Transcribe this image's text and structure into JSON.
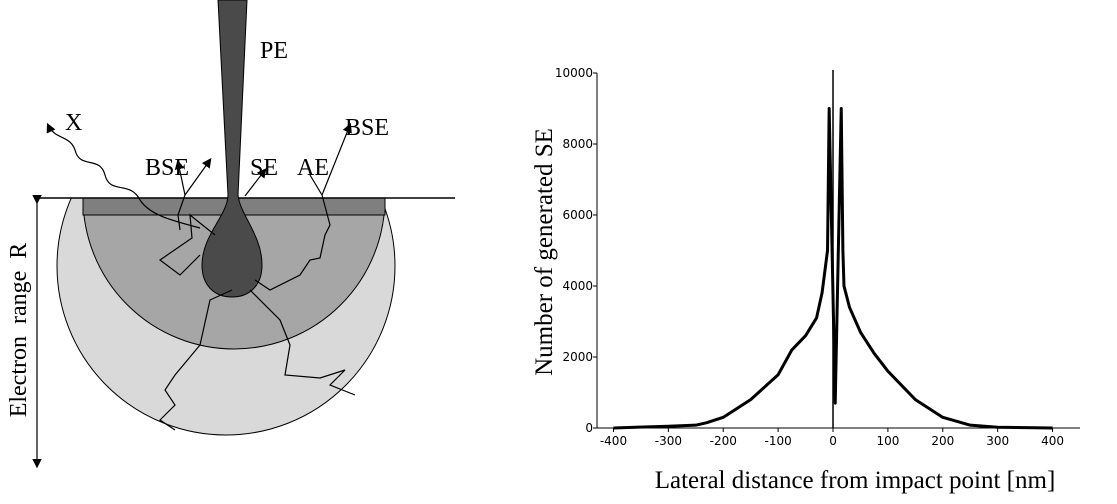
{
  "diagram": {
    "labels": [
      "PE",
      "X",
      "BSE",
      "SE",
      "AE",
      "BSE",
      "Electron  range  R"
    ]
  },
  "chart_data": {
    "type": "line",
    "x": [
      -400,
      -300,
      -250,
      -230,
      -200,
      -150,
      -100,
      -75,
      -50,
      -30,
      -20,
      -10,
      -7,
      4,
      15,
      18,
      20,
      30,
      50,
      75,
      100,
      150,
      200,
      250,
      300,
      400
    ],
    "values": [
      0,
      50,
      80,
      150,
      300,
      800,
      1500,
      2200,
      2600,
      3100,
      3800,
      5000,
      9000,
      700,
      9000,
      5000,
      4000,
      3400,
      2700,
      2100,
      1600,
      800,
      300,
      80,
      20,
      0
    ],
    "color": "#000000",
    "xlabel": "Lateral distance from impact point [nm]",
    "ylabel": "Number of generated SE",
    "xlim": [
      -430,
      450
    ],
    "ylim": [
      0,
      10000
    ],
    "xticks": [
      -400,
      -300,
      -200,
      -100,
      0,
      100,
      200,
      300,
      400
    ],
    "yticks": [
      0,
      2000,
      4000,
      6000,
      8000,
      10000
    ]
  }
}
